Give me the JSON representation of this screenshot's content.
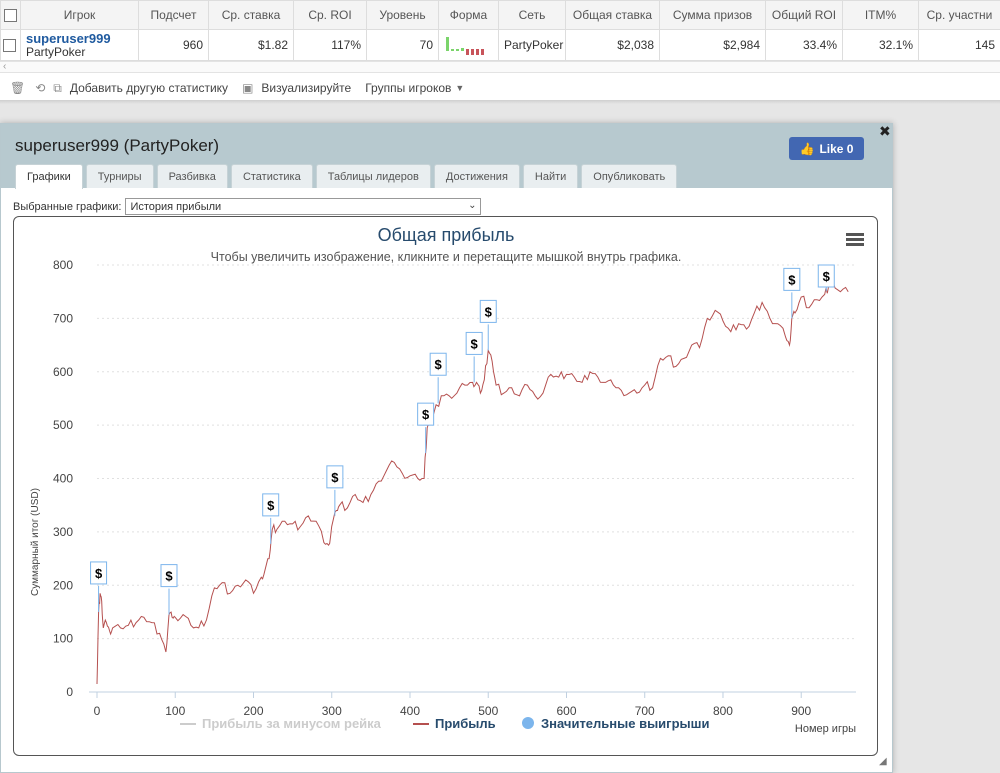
{
  "table": {
    "headers": [
      "Игрок",
      "Подсчет",
      "Ср. ставка",
      "Ср. ROI",
      "Уровень",
      "Форма",
      "Сеть",
      "Общая ставка",
      "Сумма призов",
      "Общий ROI",
      "ITM%",
      "Ср. участни"
    ],
    "row": {
      "player": "superuser999",
      "network_sub": "PartyPoker",
      "count": "960",
      "avg_stake": "$1.82",
      "avg_roi": "117%",
      "level": "70",
      "network": "PartyPoker",
      "total_stake": "$2,038",
      "prize_sum": "$2,984",
      "total_roi": "33.4%",
      "itm": "32.1%",
      "avg_entrants": "145"
    }
  },
  "toolbar": {
    "add_stats": "Добавить другую статистику",
    "visualize": "Визуализируйте",
    "player_groups": "Группы игроков"
  },
  "dialog": {
    "title": "superuser999 (PartyPoker)",
    "like": "Like 0",
    "tabs": [
      "Графики",
      "Турниры",
      "Разбивка",
      "Статистика",
      "Таблицы лидеров",
      "Достижения",
      "Найти",
      "Опубликовать"
    ],
    "selected_charts_label": "Выбранные графики:",
    "selected_chart": "История прибыли"
  },
  "chart_data": {
    "type": "line",
    "title": "Общая прибыль",
    "subtitle": "Чтобы увеличить изображение, кликните и перетащите мышкой внутрь графика.",
    "xlabel": "Номер игры",
    "ylabel": "Суммарный итог (USD)",
    "xlim": [
      0,
      970
    ],
    "ylim": [
      0,
      800
    ],
    "x_ticks": [
      0,
      100,
      200,
      300,
      400,
      500,
      600,
      700,
      800,
      900
    ],
    "y_ticks": [
      0,
      100,
      200,
      300,
      400,
      500,
      600,
      700,
      800
    ],
    "legend": [
      "Прибыль за минусом рейка",
      "Прибыль",
      "Значительные выигрыши"
    ],
    "series_color": "#b5504f",
    "series": [
      {
        "name": "Прибыль",
        "x": [
          0,
          2,
          4,
          6,
          8,
          12,
          16,
          20,
          30,
          40,
          50,
          60,
          70,
          80,
          88,
          92,
          96,
          100,
          110,
          120,
          130,
          140,
          150,
          160,
          170,
          180,
          190,
          200,
          210,
          215,
          220,
          224,
          230,
          240,
          250,
          260,
          270,
          280,
          290,
          296,
          300,
          306,
          310,
          320,
          330,
          340,
          350,
          360,
          370,
          380,
          390,
          400,
          410,
          418,
          422,
          424,
          430,
          440,
          450,
          460,
          470,
          480,
          485,
          490,
          495,
          500,
          505,
          510,
          520,
          530,
          540,
          550,
          560,
          570,
          580,
          590,
          600,
          610,
          620,
          630,
          640,
          650,
          660,
          670,
          680,
          690,
          700,
          710,
          720,
          730,
          740,
          750,
          760,
          770,
          780,
          790,
          800,
          810,
          820,
          830,
          840,
          850,
          860,
          870,
          880,
          885,
          888,
          892,
          900,
          910,
          920,
          930,
          935,
          940,
          950,
          960
        ],
        "y": [
          15,
          150,
          185,
          170,
          120,
          130,
          115,
          120,
          120,
          125,
          130,
          140,
          130,
          110,
          75,
          145,
          140,
          140,
          145,
          125,
          120,
          135,
          195,
          205,
          185,
          200,
          210,
          185,
          215,
          230,
          250,
          305,
          305,
          320,
          315,
          310,
          330,
          320,
          280,
          275,
          310,
          340,
          350,
          345,
          370,
          355,
          370,
          395,
          415,
          430,
          410,
          405,
          400,
          400,
          495,
          500,
          520,
          555,
          555,
          560,
          575,
          580,
          580,
          560,
          585,
          640,
          620,
          575,
          560,
          570,
          555,
          575,
          555,
          560,
          595,
          590,
          595,
          590,
          580,
          600,
          590,
          580,
          575,
          565,
          560,
          560,
          575,
          570,
          625,
          630,
          610,
          625,
          650,
          645,
          700,
          715,
          695,
          675,
          690,
          680,
          710,
          730,
          700,
          690,
          665,
          650,
          700,
          710,
          740,
          720,
          735,
          745,
          760,
          770,
          750,
          750
        ]
      }
    ],
    "big_wins_x": [
      2,
      92,
      222,
      304,
      420,
      436,
      482,
      500,
      888,
      932
    ]
  }
}
